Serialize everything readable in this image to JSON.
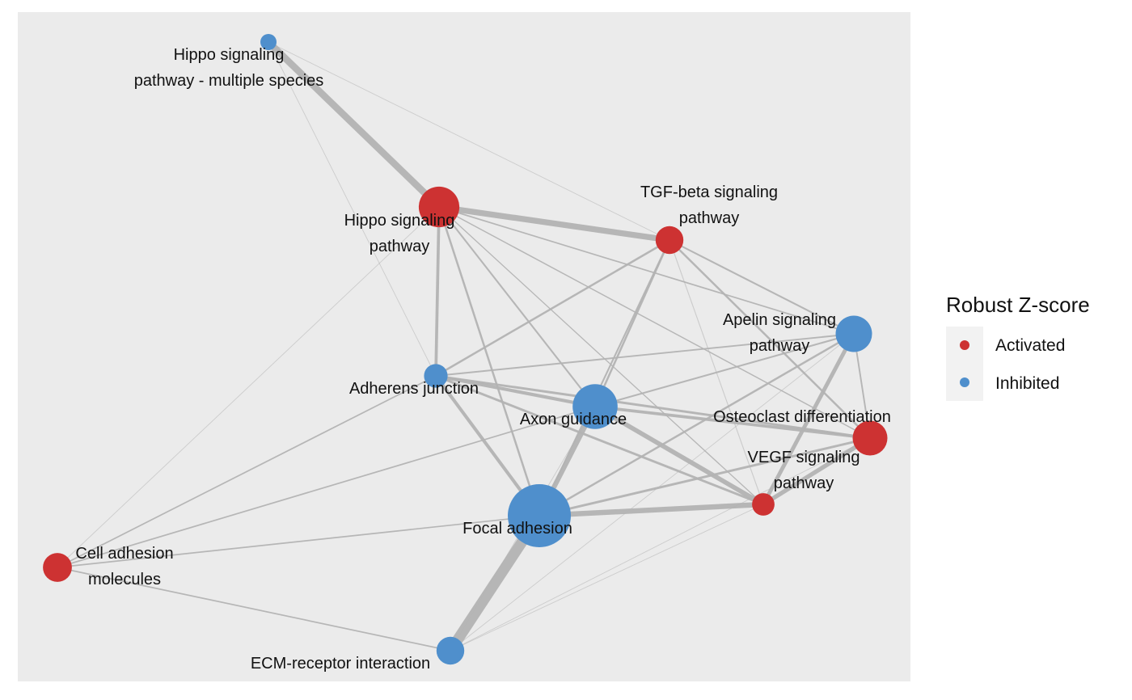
{
  "legend": {
    "title": "Robust Z-score",
    "items": [
      {
        "key": "activated",
        "label": "Activated",
        "color": "#cd3232"
      },
      {
        "key": "inhibited",
        "label": "Inhibited",
        "color": "#4f8fcc"
      }
    ]
  },
  "colors": {
    "panel_background": "#ebebeb",
    "edge": "#b3b3b3",
    "activated": "#cd3232",
    "inhibited": "#4f8fcc"
  },
  "nodes": [
    {
      "id": "hippo_multi",
      "lines": [
        "Hippo signaling",
        "pathway - multiple species"
      ],
      "status": "inhibited",
      "relative_size": 0.12
    },
    {
      "id": "hippo",
      "lines": [
        "Hippo signaling",
        "pathway"
      ],
      "status": "activated",
      "relative_size": 0.58
    },
    {
      "id": "tgfb",
      "lines": [
        "TGF-beta signaling",
        "pathway"
      ],
      "status": "activated",
      "relative_size": 0.34
    },
    {
      "id": "apelin",
      "lines": [
        "Apelin signaling",
        "pathway"
      ],
      "status": "inhibited",
      "relative_size": 0.5
    },
    {
      "id": "adherens",
      "lines": [
        "Adherens junction"
      ],
      "status": "inhibited",
      "relative_size": 0.26
    },
    {
      "id": "axon",
      "lines": [
        "Axon guidance"
      ],
      "status": "inhibited",
      "relative_size": 0.66
    },
    {
      "id": "osteoclast",
      "lines": [
        "Osteoclast differentiation"
      ],
      "status": "activated",
      "relative_size": 0.47
    },
    {
      "id": "vegf",
      "lines": [
        "VEGF signaling",
        "pathway"
      ],
      "status": "activated",
      "relative_size": 0.24
    },
    {
      "id": "focal",
      "lines": [
        "Focal adhesion"
      ],
      "status": "inhibited",
      "relative_size": 1.0
    },
    {
      "id": "cam",
      "lines": [
        "Cell adhesion",
        "molecules"
      ],
      "status": "activated",
      "relative_size": 0.36
    },
    {
      "id": "ecm",
      "lines": [
        "ECM-receptor interaction"
      ],
      "status": "inhibited",
      "relative_size": 0.34
    }
  ],
  "edges": [
    {
      "source": "hippo_multi",
      "target": "hippo",
      "weight": 1.0
    },
    {
      "source": "hippo_multi",
      "target": "adherens",
      "weight": 0.05
    },
    {
      "source": "hippo_multi",
      "target": "tgfb",
      "weight": 0.05
    },
    {
      "source": "hippo",
      "target": "tgfb",
      "weight": 0.85
    },
    {
      "source": "hippo",
      "target": "adherens",
      "weight": 0.4
    },
    {
      "source": "hippo",
      "target": "axon",
      "weight": 0.2
    },
    {
      "source": "hippo",
      "target": "focal",
      "weight": 0.25
    },
    {
      "source": "hippo",
      "target": "apelin",
      "weight": 0.15
    },
    {
      "source": "hippo",
      "target": "osteoclast",
      "weight": 0.12
    },
    {
      "source": "hippo",
      "target": "vegf",
      "weight": 0.1
    },
    {
      "source": "hippo",
      "target": "cam",
      "weight": 0.05
    },
    {
      "source": "tgfb",
      "target": "adherens",
      "weight": 0.25
    },
    {
      "source": "tgfb",
      "target": "axon",
      "weight": 0.25
    },
    {
      "source": "tgfb",
      "target": "focal",
      "weight": 0.2
    },
    {
      "source": "tgfb",
      "target": "apelin",
      "weight": 0.2
    },
    {
      "source": "tgfb",
      "target": "osteoclast",
      "weight": 0.25
    },
    {
      "source": "tgfb",
      "target": "vegf",
      "weight": 0.08
    },
    {
      "source": "apelin",
      "target": "adherens",
      "weight": 0.18
    },
    {
      "source": "apelin",
      "target": "axon",
      "weight": 0.2
    },
    {
      "source": "apelin",
      "target": "focal",
      "weight": 0.25
    },
    {
      "source": "apelin",
      "target": "osteoclast",
      "weight": 0.18
    },
    {
      "source": "apelin",
      "target": "vegf",
      "weight": 0.55
    },
    {
      "source": "apelin",
      "target": "ecm",
      "weight": 0.05
    },
    {
      "source": "adherens",
      "target": "axon",
      "weight": 0.45
    },
    {
      "source": "adherens",
      "target": "focal",
      "weight": 0.45
    },
    {
      "source": "adherens",
      "target": "osteoclast",
      "weight": 0.3
    },
    {
      "source": "adherens",
      "target": "vegf",
      "weight": 0.3
    },
    {
      "source": "adherens",
      "target": "cam",
      "weight": 0.15
    },
    {
      "source": "axon",
      "target": "focal",
      "weight": 0.7
    },
    {
      "source": "axon",
      "target": "osteoclast",
      "weight": 0.4
    },
    {
      "source": "axon",
      "target": "vegf",
      "weight": 0.65
    },
    {
      "source": "axon",
      "target": "cam",
      "weight": 0.15
    },
    {
      "source": "axon",
      "target": "ecm",
      "weight": 0.05
    },
    {
      "source": "focal",
      "target": "vegf",
      "weight": 0.75
    },
    {
      "source": "focal",
      "target": "osteoclast",
      "weight": 0.3
    },
    {
      "source": "focal",
      "target": "cam",
      "weight": 0.15
    },
    {
      "source": "focal",
      "target": "ecm",
      "weight": 1.6
    },
    {
      "source": "osteoclast",
      "target": "vegf",
      "weight": 0.6
    },
    {
      "source": "osteoclast",
      "target": "ecm",
      "weight": 0.05
    },
    {
      "source": "cam",
      "target": "ecm",
      "weight": 0.15
    },
    {
      "source": "vegf",
      "target": "ecm",
      "weight": 0.05
    }
  ]
}
